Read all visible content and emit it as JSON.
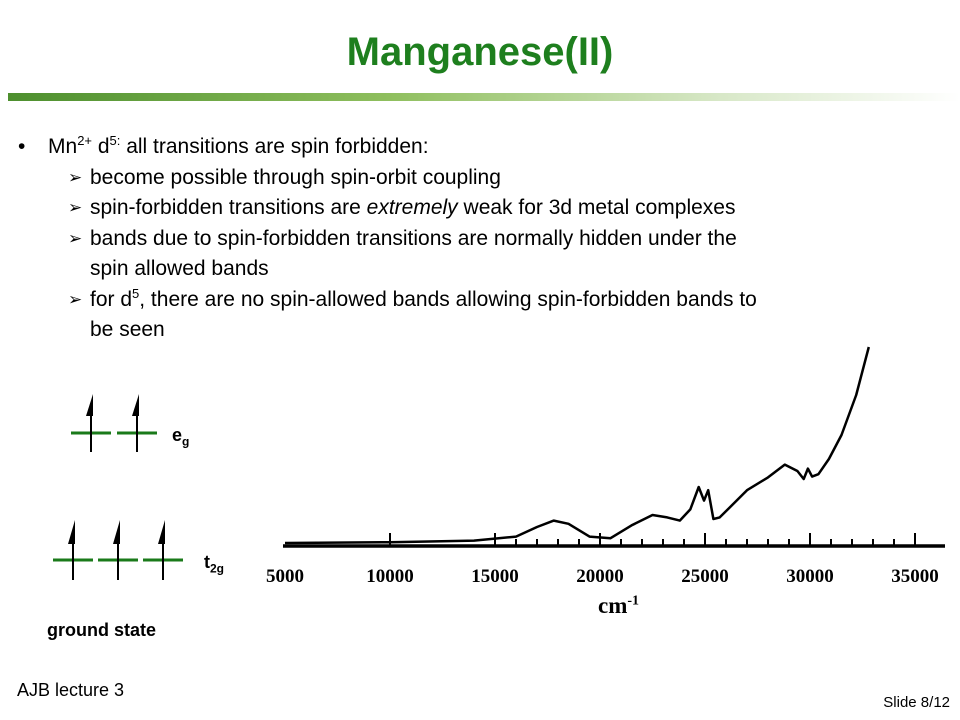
{
  "slide": {
    "title": "Manganese(II)",
    "footer_left": "AJB lecture 3",
    "footer_right": "Slide 8/12"
  },
  "bullets": {
    "main": {
      "prefix": "Mn",
      "charge": "2+",
      "mid": " d",
      "electrons": "5:",
      "rest": " all transitions are spin forbidden:"
    },
    "sub": [
      {
        "text": "become possible through spin-orbit coupling"
      },
      {
        "before": "spin-forbidden transitions are ",
        "emphasis": "extremely",
        "after": " weak for 3d metal complexes"
      },
      {
        "line1": "bands due to spin-forbidden transitions are normally hidden under the",
        "line2": "spin allowed bands"
      },
      {
        "before": "for d",
        "sup": "5",
        "line1_after": ", there are no spin-allowed bands allowing spin-forbidden bands to",
        "line2": "be seen"
      }
    ]
  },
  "orbital_diagram": {
    "eg_label": {
      "main": "e",
      "sub": "g"
    },
    "t2g_label": {
      "main": "t",
      "sub": "2g"
    },
    "caption": "ground state",
    "eg_electrons": 2,
    "t2g_electrons": 3,
    "line_color": "#1a7a1a"
  },
  "chart_data": {
    "type": "line",
    "xlabel": "cm",
    "xlabel_exponent": "-1",
    "x_ticks": [
      5000,
      10000,
      15000,
      20000,
      25000,
      30000,
      35000
    ],
    "xlim": [
      5000,
      35000
    ],
    "series": [
      {
        "x": [
          5000,
          10000,
          14000,
          16000,
          17000,
          17800,
          18500,
          19500,
          20500,
          21500,
          22500,
          23200,
          23800,
          24300,
          24700,
          24950,
          25150,
          25400,
          25700,
          26200,
          27000,
          28000,
          28800,
          29400,
          29700,
          29900,
          30100,
          30400,
          30900,
          31500,
          32200,
          32800
        ],
        "y": [
          0.0,
          0.01,
          0.03,
          0.08,
          0.2,
          0.28,
          0.24,
          0.08,
          0.06,
          0.22,
          0.35,
          0.32,
          0.28,
          0.42,
          0.7,
          0.53,
          0.66,
          0.3,
          0.32,
          0.45,
          0.66,
          0.82,
          0.98,
          0.9,
          0.8,
          0.93,
          0.83,
          0.86,
          1.05,
          1.35,
          1.85,
          2.45
        ]
      }
    ]
  }
}
